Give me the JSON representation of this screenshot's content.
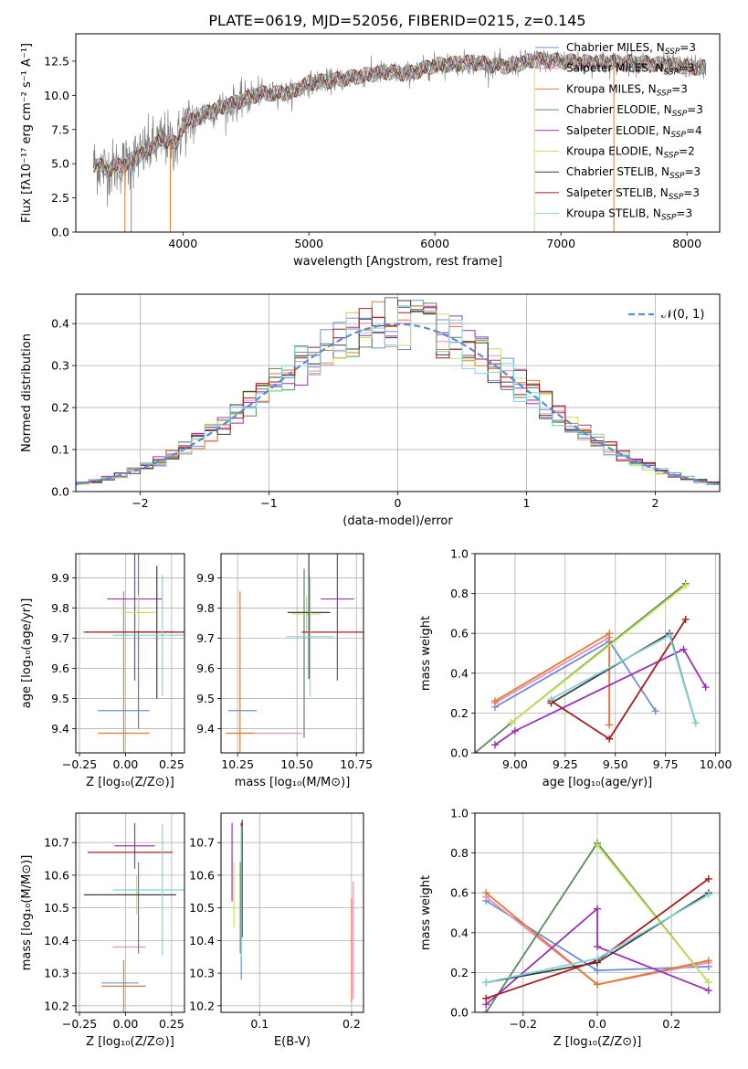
{
  "title": "PLATE=0619, MJD=52056, FIBERID=0215, z=0.145",
  "colors": {
    "chabrier_miles": "#6a8fd6",
    "salpeter_miles": "#e98bc0",
    "kroupa_miles": "#e07b2e",
    "chabrier_elodie": "#5a8a5a",
    "salpeter_elodie": "#9b30b8",
    "kroupa_elodie": "#c8e35a",
    "chabrier_stelib": "#3d3d3d",
    "salpeter_stelib": "#a81c1c",
    "kroupa_stelib": "#7fd4d9",
    "data": "#808080",
    "gaussian": "#5b8ad6"
  },
  "legend_spectrum": [
    {
      "key": "chabrier_miles",
      "pre": "Chabrier MILES, N",
      "sub": "SSP",
      "post": "=3"
    },
    {
      "key": "salpeter_miles",
      "pre": "Salpeter MILES, N",
      "sub": "SSP",
      "post": "=3"
    },
    {
      "key": "kroupa_miles",
      "pre": "Kroupa MILES, N",
      "sub": "SSP",
      "post": "=3"
    },
    {
      "key": "chabrier_elodie",
      "pre": "Chabrier ELODIE, N",
      "sub": "SSP",
      "post": "=3"
    },
    {
      "key": "salpeter_elodie",
      "pre": "Salpeter ELODIE, N",
      "sub": "SSP",
      "post": "=4"
    },
    {
      "key": "kroupa_elodie",
      "pre": "Kroupa ELODIE, N",
      "sub": "SSP",
      "post": "=2"
    },
    {
      "key": "chabrier_stelib",
      "pre": "Chabrier STELIB, N",
      "sub": "SSP",
      "post": "=3"
    },
    {
      "key": "salpeter_stelib",
      "pre": "Salpeter STELIB, N",
      "sub": "SSP",
      "post": "=3"
    },
    {
      "key": "kroupa_stelib",
      "pre": "Kroupa STELIB, N",
      "sub": "SSP",
      "post": "=3"
    }
  ],
  "chart_data": [
    {
      "type": "line",
      "name": "spectrum",
      "xlabel": "wavelength [Angstrom, rest frame]",
      "ylabel": "Flux [fλ10⁻¹⁷ erg cm⁻² s⁻¹ A⁻¹]",
      "xlim": [
        3150,
        8260
      ],
      "ylim": [
        0,
        14.5
      ],
      "xticks": [
        4000,
        5000,
        6000,
        7000,
        8000
      ],
      "yticks": [
        0.0,
        2.5,
        5.0,
        7.5,
        10.0,
        12.5
      ],
      "grid": false,
      "legend": "top-right",
      "continuum_knots": [
        [
          3290,
          5.0
        ],
        [
          3400,
          4.6
        ],
        [
          3550,
          5.0
        ],
        [
          3700,
          5.9
        ],
        [
          3850,
          6.8
        ],
        [
          3950,
          6.4
        ],
        [
          4000,
          7.8
        ],
        [
          4200,
          8.8
        ],
        [
          4400,
          9.4
        ],
        [
          4600,
          10.1
        ],
        [
          4860,
          10.2
        ],
        [
          5000,
          10.9
        ],
        [
          5200,
          11.1
        ],
        [
          5400,
          11.4
        ],
        [
          5600,
          11.7
        ],
        [
          5800,
          11.6
        ],
        [
          6000,
          12.2
        ],
        [
          6300,
          12.4
        ],
        [
          6560,
          12.1
        ],
        [
          6800,
          12.6
        ],
        [
          7200,
          12.4
        ],
        [
          7600,
          12.4
        ],
        [
          8000,
          12.1
        ],
        [
          8150,
          12.0
        ]
      ]
    },
    {
      "type": "bar",
      "name": "residual_histogram",
      "xlabel": "(data-model)/error",
      "ylabel": "Normed distribution",
      "xlim": [
        -2.5,
        2.5
      ],
      "ylim": [
        0,
        0.47
      ],
      "xticks": [
        -2,
        -1,
        0,
        1,
        2
      ],
      "yticks": [
        0.0,
        0.1,
        0.2,
        0.3,
        0.4
      ],
      "grid": true,
      "legend": "top-right",
      "gaussian_label": "𝒩(0, 1)",
      "bin_width": 0.1
    },
    {
      "type": "scatter",
      "name": "Z_vs_age",
      "xlabel": "Z [log₁₀(Z/Z⊙)]",
      "ylabel": "age  [log₁₀(age/yr)]",
      "xlim": [
        -0.27,
        0.32
      ],
      "ylim": [
        9.32,
        9.98
      ],
      "xticks": [
        -0.25,
        0.0,
        0.25
      ],
      "yticks": [
        9.4,
        9.5,
        9.6,
        9.7,
        9.8,
        9.9
      ],
      "grid": true,
      "points": [
        {
          "key": "chabrier_miles",
          "x": -0.01,
          "y": 9.46,
          "xerr": 0.14,
          "yerr": 0.0
        },
        {
          "key": "salpeter_miles",
          "x": 0.05,
          "y": 9.72,
          "xerr": 0.2,
          "yerr": 0.0
        },
        {
          "key": "kroupa_miles",
          "x": -0.01,
          "y": 9.385,
          "xerr": 0.14,
          "yerr": 0.47
        },
        {
          "key": "chabrier_elodie",
          "x": 0.07,
          "y": 9.72,
          "xerr": 0.3,
          "yerr": 0.32
        },
        {
          "key": "salpeter_elodie",
          "x": 0.05,
          "y": 9.83,
          "xerr": 0.15,
          "yerr": 0.27
        },
        {
          "key": "kroupa_elodie",
          "x": 0.07,
          "y": 9.785,
          "xerr": 0.09,
          "yerr": 0.06
        },
        {
          "key": "chabrier_stelib",
          "x": 0.17,
          "y": 9.72,
          "xerr": 0.09,
          "yerr": 0.22
        },
        {
          "key": "salpeter_stelib",
          "x": 0.05,
          "y": 9.72,
          "xerr": 0.27,
          "yerr": 0.0
        },
        {
          "key": "kroupa_stelib",
          "x": 0.2,
          "y": 9.71,
          "xerr": 0.27,
          "yerr": 0.2
        }
      ]
    },
    {
      "type": "scatter",
      "name": "mass_vs_age",
      "xlabel": "mass [log₁₀(M/M⊙)]",
      "ylabel": "",
      "xlim": [
        10.18,
        10.78
      ],
      "ylim": [
        9.32,
        9.98
      ],
      "xticks": [
        10.25,
        10.5,
        10.75
      ],
      "yticks": [
        9.4,
        9.5,
        9.6,
        9.7,
        9.8,
        9.9
      ],
      "grid": true,
      "points": [
        {
          "key": "chabrier_miles",
          "x": 10.27,
          "y": 9.46,
          "xerr": 0.06,
          "yerr": 0.0
        },
        {
          "key": "salpeter_miles",
          "x": 10.38,
          "y": 9.385,
          "xerr": 0.14,
          "yerr": 0.0
        },
        {
          "key": "kroupa_miles",
          "x": 10.26,
          "y": 9.385,
          "xerr": 0.06,
          "yerr": 0.47
        },
        {
          "key": "chabrier_elodie",
          "x": 10.53,
          "y": 9.65,
          "xerr": 0.0,
          "yerr": 0.28
        },
        {
          "key": "salpeter_elodie",
          "x": 10.67,
          "y": 9.83,
          "xerr": 0.07,
          "yerr": 0.27
        },
        {
          "key": "kroupa_elodie",
          "x": 10.54,
          "y": 9.78,
          "xerr": 0.06,
          "yerr": 0.06
        },
        {
          "key": "chabrier_stelib",
          "x": 10.55,
          "y": 9.785,
          "xerr": 0.09,
          "yerr": 0.22
        },
        {
          "key": "salpeter_stelib",
          "x": 10.66,
          "y": 9.72,
          "xerr": 0.14,
          "yerr": 0.0
        },
        {
          "key": "kroupa_stelib",
          "x": 10.555,
          "y": 9.705,
          "xerr": 0.1,
          "yerr": 0.2
        }
      ]
    },
    {
      "type": "line",
      "name": "age_vs_mass_weight",
      "xlabel": "age  [log₁₀(age/yr)]",
      "ylabel": "mass weight",
      "xlim": [
        8.8,
        10.02
      ],
      "ylim": [
        0,
        1.0
      ],
      "xticks": [
        9.0,
        9.25,
        9.5,
        9.75,
        10.0
      ],
      "yticks": [
        0.0,
        0.2,
        0.4,
        0.6,
        0.8,
        1.0
      ],
      "grid": true,
      "series": [
        {
          "key": "chabrier_miles",
          "x": [
            8.9,
            9.47,
            9.7
          ],
          "y": [
            0.23,
            0.56,
            0.21
          ]
        },
        {
          "key": "salpeter_miles",
          "x": [
            8.9,
            9.47,
            9.47
          ],
          "y": [
            0.25,
            0.58,
            0.14
          ]
        },
        {
          "key": "kroupa_miles",
          "x": [
            8.9,
            9.47,
            9.47
          ],
          "y": [
            0.26,
            0.6,
            0.14
          ]
        },
        {
          "key": "chabrier_elodie",
          "x": [
            8.8,
            8.98,
            9.85
          ],
          "y": [
            0.0,
            0.15,
            0.85
          ]
        },
        {
          "key": "salpeter_elodie",
          "x": [
            8.9,
            9.0,
            9.84,
            9.95
          ],
          "y": [
            0.04,
            0.11,
            0.52,
            0.33
          ]
        },
        {
          "key": "kroupa_elodie",
          "x": [
            8.98,
            9.85
          ],
          "y": [
            0.15,
            0.84
          ]
        },
        {
          "key": "chabrier_stelib",
          "x": [
            9.18,
            9.77,
            9.9
          ],
          "y": [
            0.25,
            0.6,
            0.15
          ]
        },
        {
          "key": "salpeter_stelib",
          "x": [
            9.18,
            9.47,
            9.85
          ],
          "y": [
            0.26,
            0.07,
            0.67
          ]
        },
        {
          "key": "kroupa_stelib",
          "x": [
            9.18,
            9.77,
            9.9
          ],
          "y": [
            0.27,
            0.59,
            0.15
          ]
        }
      ]
    },
    {
      "type": "scatter",
      "name": "Z_vs_mass",
      "xlabel": "Z [log₁₀(Z/Z⊙)]",
      "ylabel": "mass [log₁₀(M/M⊙)]",
      "xlim": [
        -0.27,
        0.32
      ],
      "ylim": [
        10.18,
        10.79
      ],
      "xticks": [
        -0.25,
        0.0,
        0.25
      ],
      "yticks": [
        10.2,
        10.3,
        10.4,
        10.5,
        10.6,
        10.7
      ],
      "grid": true,
      "points": [
        {
          "key": "chabrier_miles",
          "x": -0.03,
          "y": 10.27,
          "xerr": 0.1,
          "yerr": 0.0
        },
        {
          "key": "salpeter_miles",
          "x": 0.02,
          "y": 10.38,
          "xerr": 0.09,
          "yerr": 0.0
        },
        {
          "key": "kroupa_miles",
          "x": -0.01,
          "y": 10.26,
          "xerr": 0.12,
          "yerr": 0.08
        },
        {
          "key": "chabrier_elodie",
          "x": 0.07,
          "y": 10.5,
          "xerr": 0.0,
          "yerr": 0.14
        },
        {
          "key": "salpeter_elodie",
          "x": 0.05,
          "y": 10.69,
          "xerr": 0.11,
          "yerr": 0.07
        },
        {
          "key": "kroupa_elodie",
          "x": 0.06,
          "y": 10.54,
          "xerr": 0.1,
          "yerr": 0.06
        },
        {
          "key": "chabrier_stelib",
          "x": 0.025,
          "y": 10.54,
          "xerr": 0.25,
          "yerr": 0.0
        },
        {
          "key": "salpeter_stelib",
          "x": 0.025,
          "y": 10.67,
          "xerr": 0.23,
          "yerr": 0.0
        },
        {
          "key": "kroupa_stelib",
          "x": 0.2,
          "y": 10.555,
          "xerr": 0.27,
          "yerr": 0.2
        }
      ]
    },
    {
      "type": "scatter",
      "name": "EBV_vs_mass",
      "xlabel": "E(B-V)",
      "ylabel": "",
      "xlim": [
        0.058,
        0.213
      ],
      "ylim": [
        10.18,
        10.79
      ],
      "xticks": [
        0.1,
        0.2
      ],
      "yticks": [
        10.2,
        10.3,
        10.4,
        10.5,
        10.6,
        10.7
      ],
      "grid": true,
      "points": [
        {
          "key": "chabrier_miles",
          "x": 0.08,
          "y": 10.5,
          "xerr": 0.0,
          "yerr": 0.22
        },
        {
          "key": "salpeter_miles",
          "x": 0.202,
          "y": 10.4,
          "xerr": 0.0,
          "yerr": 0.18
        },
        {
          "key": "kroupa_miles",
          "x": 0.2,
          "y": 10.37,
          "xerr": 0.0,
          "yerr": 0.16
        },
        {
          "key": "chabrier_elodie",
          "x": 0.079,
          "y": 10.5,
          "xerr": 0.0,
          "yerr": 0.14
        },
        {
          "key": "salpeter_elodie",
          "x": 0.07,
          "y": 10.64,
          "xerr": 0.0,
          "yerr": 0.12
        },
        {
          "key": "kroupa_elodie",
          "x": 0.072,
          "y": 10.54,
          "xerr": 0.0,
          "yerr": 0.1
        },
        {
          "key": "chabrier_stelib",
          "x": 0.081,
          "y": 10.59,
          "xerr": 0.0,
          "yerr": 0.18
        },
        {
          "key": "salpeter_stelib",
          "x": 0.08,
          "y": 10.62,
          "xerr": 0.0,
          "yerr": 0.14
        },
        {
          "key": "kroupa_stelib",
          "x": 0.08,
          "y": 10.55,
          "xerr": 0.0,
          "yerr": 0.2
        }
      ]
    },
    {
      "type": "line",
      "name": "Z_vs_mass_weight",
      "xlabel": "Z [log₁₀(Z/Z⊙)]",
      "ylabel": "mass weight",
      "xlim": [
        -0.33,
        0.33
      ],
      "ylim": [
        0,
        1.0
      ],
      "xticks": [
        -0.2,
        0.0,
        0.2
      ],
      "yticks": [
        0.0,
        0.2,
        0.4,
        0.6,
        0.8,
        1.0
      ],
      "grid": true,
      "series": [
        {
          "key": "chabrier_miles",
          "x": [
            -0.3,
            0.0,
            0.3
          ],
          "y": [
            0.56,
            0.21,
            0.23
          ]
        },
        {
          "key": "salpeter_miles",
          "x": [
            -0.3,
            0.0,
            0.3
          ],
          "y": [
            0.58,
            0.14,
            0.25
          ]
        },
        {
          "key": "kroupa_miles",
          "x": [
            -0.3,
            0.0,
            0.3
          ],
          "y": [
            0.6,
            0.14,
            0.26
          ]
        },
        {
          "key": "chabrier_elodie",
          "x": [
            -0.3,
            0.0,
            0.3
          ],
          "y": [
            0.0,
            0.85,
            0.15
          ]
        },
        {
          "key": "salpeter_elodie",
          "x": [
            -0.3,
            0.0,
            0.0,
            0.3
          ],
          "y": [
            0.04,
            0.52,
            0.33,
            0.11
          ]
        },
        {
          "key": "kroupa_elodie",
          "x": [
            0.0,
            0.3
          ],
          "y": [
            0.84,
            0.15
          ]
        },
        {
          "key": "chabrier_stelib",
          "x": [
            -0.3,
            0.0,
            0.3
          ],
          "y": [
            0.15,
            0.25,
            0.6
          ]
        },
        {
          "key": "salpeter_stelib",
          "x": [
            -0.3,
            0.0,
            0.3
          ],
          "y": [
            0.07,
            0.26,
            0.67
          ]
        },
        {
          "key": "kroupa_stelib",
          "x": [
            -0.3,
            0.0,
            0.3
          ],
          "y": [
            0.15,
            0.27,
            0.59
          ]
        }
      ]
    }
  ]
}
